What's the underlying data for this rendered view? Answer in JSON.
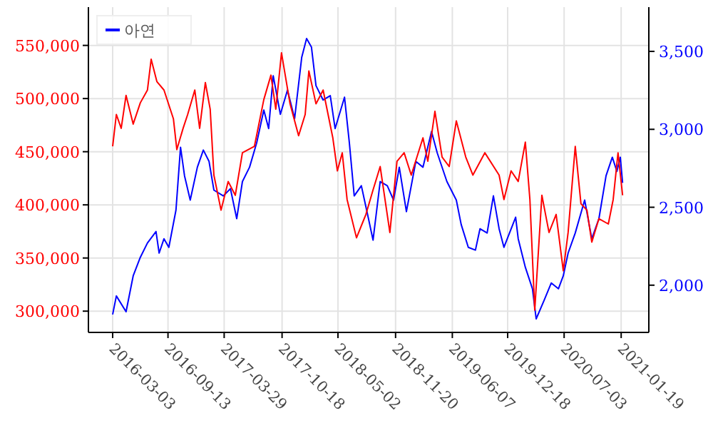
{
  "chart_data": {
    "type": "line",
    "grid": true,
    "legend": "top left",
    "line_style": "solid",
    "xlim": [
      "2015-12-09",
      "2021-04-26"
    ],
    "xticks": [
      "2016-03-03",
      "2016-09-13",
      "2017-03-29",
      "2017-10-18",
      "2018-05-02",
      "2018-11-20",
      "2019-06-07",
      "2019-12-18",
      "2020-07-03",
      "2021-01-19"
    ],
    "ylim": [
      280000,
      586000
    ],
    "yticks": [
      {
        "value": 300000,
        "label": "300,000"
      },
      {
        "value": 350000,
        "label": "350,000"
      },
      {
        "value": 400000,
        "label": "400,000"
      },
      {
        "value": 450000,
        "label": "450,000"
      },
      {
        "value": 500000,
        "label": "500,000"
      },
      {
        "value": 550000,
        "label": "550,000"
      }
    ],
    "y2lim": [
      1697,
      3784
    ],
    "y2ticks": [
      {
        "value": 2000,
        "label": "2,000"
      },
      {
        "value": 2500,
        "label": "2,500"
      },
      {
        "value": 3000,
        "label": "3,000"
      },
      {
        "value": 3500,
        "label": "3,500"
      }
    ],
    "series": [
      {
        "color": "#ff0000",
        "axis": "y",
        "x": [
          "2016-03-03",
          "2016-03-16",
          "2016-04-02",
          "2016-04-19",
          "2016-05-14",
          "2016-06-08",
          "2016-07-03",
          "2016-07-16",
          "2016-08-05",
          "2016-08-30",
          "2016-10-02",
          "2016-10-14",
          "2016-11-05",
          "2016-11-21",
          "2016-12-16",
          "2017-01-02",
          "2017-01-22",
          "2017-02-08",
          "2017-02-21",
          "2017-03-18",
          "2017-04-12",
          "2017-05-07",
          "2017-06-01",
          "2017-07-13",
          "2017-08-15",
          "2017-09-09",
          "2017-09-26",
          "2017-10-16",
          "2017-11-15",
          "2017-12-15",
          "2018-01-07",
          "2018-01-20",
          "2018-02-14",
          "2018-03-11",
          "2018-04-14",
          "2018-04-30",
          "2018-05-17",
          "2018-06-03",
          "2018-07-06",
          "2018-08-08",
          "2018-09-02",
          "2018-09-27",
          "2018-10-31",
          "2018-11-25",
          "2018-12-20",
          "2019-01-14",
          "2019-02-24",
          "2019-03-13",
          "2019-04-07",
          "2019-05-02",
          "2019-05-27",
          "2019-06-21",
          "2019-07-24",
          "2019-08-18",
          "2019-09-29",
          "2019-11-18",
          "2019-12-05",
          "2019-12-30",
          "2020-01-24",
          "2020-02-18",
          "2020-03-05",
          "2020-03-22",
          "2020-04-16",
          "2020-05-11",
          "2020-06-05",
          "2020-06-30",
          "2020-07-17",
          "2020-08-11",
          "2020-08-31",
          "2020-09-21",
          "2020-10-08",
          "2020-11-02",
          "2020-12-05",
          "2020-12-22",
          "2021-01-08",
          "2021-01-24"
        ],
        "values": [
          455000,
          485000,
          472000,
          503000,
          476000,
          496000,
          508000,
          537000,
          516000,
          508000,
          481000,
          452000,
          472000,
          485000,
          508000,
          472000,
          515000,
          490000,
          428000,
          395000,
          422000,
          409000,
          449000,
          455000,
          499000,
          522000,
          490000,
          543000,
          495000,
          465000,
          485000,
          526000,
          495000,
          508000,
          463000,
          432000,
          449000,
          405000,
          369000,
          391000,
          414000,
          436000,
          374000,
          441000,
          449000,
          428000,
          463000,
          441000,
          488000,
          445000,
          436000,
          479000,
          445000,
          428000,
          449000,
          428000,
          405000,
          432000,
          422000,
          459000,
          405000,
          301000,
          409000,
          374000,
          391000,
          338000,
          374000,
          455000,
          401000,
          395000,
          365000,
          387000,
          382000,
          405000,
          449000,
          409000
        ]
      },
      {
        "name": "아연",
        "color": "#0000ff",
        "axis": "y2",
        "x": [
          "2016-03-03",
          "2016-03-16",
          "2016-04-19",
          "2016-05-14",
          "2016-06-08",
          "2016-07-03",
          "2016-08-02",
          "2016-08-13",
          "2016-08-30",
          "2016-09-16",
          "2016-10-11",
          "2016-10-27",
          "2016-11-10",
          "2016-11-30",
          "2016-12-25",
          "2017-01-15",
          "2017-02-04",
          "2017-02-21",
          "2017-03-26",
          "2017-04-20",
          "2017-05-12",
          "2017-06-01",
          "2017-06-26",
          "2017-07-21",
          "2017-08-15",
          "2017-09-01",
          "2017-09-17",
          "2017-10-12",
          "2017-11-06",
          "2017-12-01",
          "2017-12-26",
          "2018-01-12",
          "2018-01-29",
          "2018-02-14",
          "2018-03-11",
          "2018-04-05",
          "2018-04-22",
          "2018-05-25",
          "2018-06-11",
          "2018-06-28",
          "2018-07-23",
          "2018-08-17",
          "2018-09-02",
          "2018-09-27",
          "2018-10-22",
          "2018-11-13",
          "2018-12-03",
          "2018-12-28",
          "2019-01-30",
          "2019-02-24",
          "2019-03-26",
          "2019-04-15",
          "2019-05-19",
          "2019-06-21",
          "2019-07-08",
          "2019-08-02",
          "2019-08-27",
          "2019-09-12",
          "2019-10-07",
          "2019-10-29",
          "2019-11-18",
          "2019-12-05",
          "2020-01-15",
          "2020-01-24",
          "2020-02-18",
          "2020-03-14",
          "2020-03-27",
          "2020-04-24",
          "2020-05-19",
          "2020-06-13",
          "2020-06-30",
          "2020-07-17",
          "2020-08-11",
          "2020-09-13",
          "2020-10-08",
          "2020-11-02",
          "2020-11-27",
          "2020-12-19",
          "2021-01-04",
          "2021-01-16",
          "2021-01-24"
        ],
        "values": [
          1812,
          1931,
          1830,
          2060,
          2179,
          2271,
          2344,
          2206,
          2298,
          2243,
          2482,
          2885,
          2702,
          2546,
          2757,
          2867,
          2794,
          2610,
          2573,
          2619,
          2427,
          2665,
          2757,
          2913,
          3124,
          3005,
          3344,
          3096,
          3252,
          3069,
          3463,
          3583,
          3528,
          3280,
          3188,
          3216,
          3005,
          3206,
          2913,
          2573,
          2638,
          2427,
          2289,
          2665,
          2638,
          2546,
          2757,
          2472,
          2794,
          2757,
          2986,
          2849,
          2665,
          2546,
          2390,
          2243,
          2225,
          2362,
          2335,
          2573,
          2362,
          2243,
          2436,
          2298,
          2115,
          1977,
          1784,
          1904,
          2014,
          1977,
          2060,
          2206,
          2335,
          2546,
          2298,
          2427,
          2702,
          2821,
          2730,
          2821,
          2656
        ]
      }
    ]
  }
}
